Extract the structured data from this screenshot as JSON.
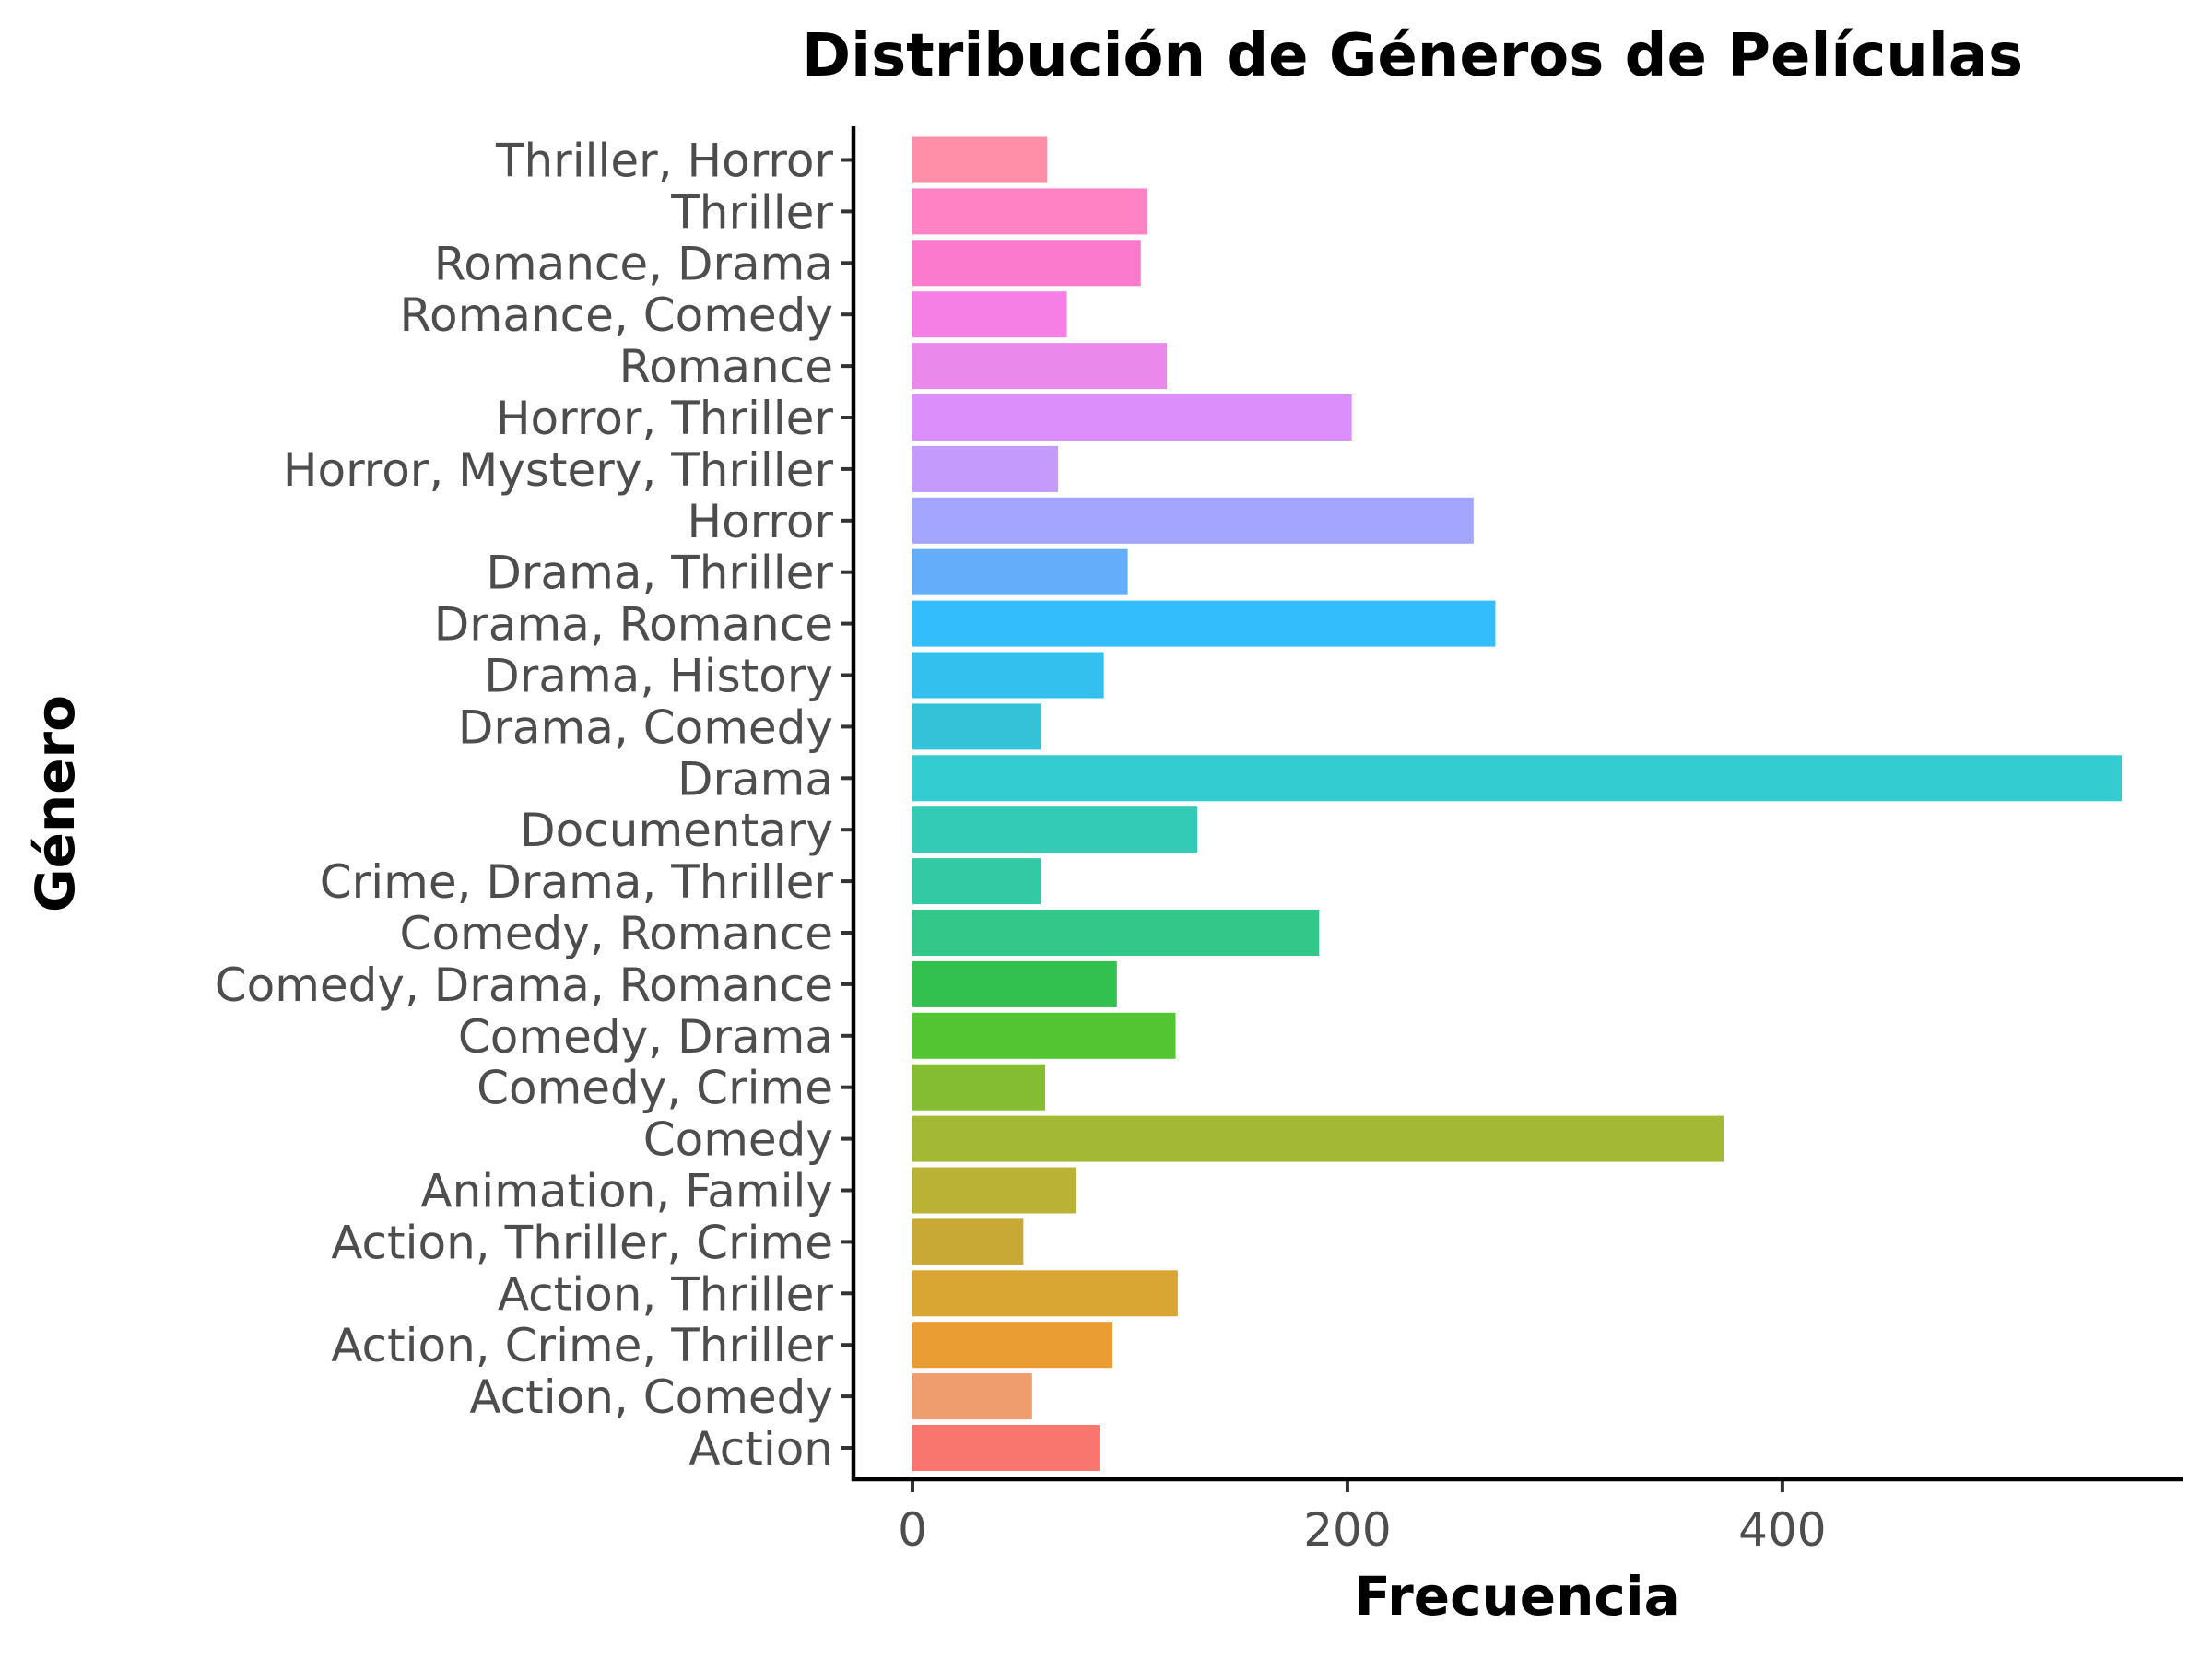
{
  "chart_data": {
    "type": "bar",
    "orientation": "horizontal",
    "title": "Distribución de Géneros de Películas",
    "xlabel": "Frecuencia",
    "ylabel": "Género",
    "xlim": [
      0,
      565
    ],
    "xticks": [
      0,
      200,
      400
    ],
    "xtick_labels": [
      "0",
      "200",
      "400"
    ],
    "grid": false,
    "legend": "none",
    "categories": [
      "Action",
      "Action, Comedy",
      "Action, Crime, Thriller",
      "Action, Thriller",
      "Action, Thriller, Crime",
      "Animation, Family",
      "Comedy",
      "Comedy, Crime",
      "Comedy, Drama",
      "Comedy, Drama, Romance",
      "Comedy, Romance",
      "Crime, Drama, Thriller",
      "Documentary",
      "Drama",
      "Drama, Comedy",
      "Drama, History",
      "Drama, Romance",
      "Drama, Thriller",
      "Horror",
      "Horror, Mystery, Thriller",
      "Horror, Thriller",
      "Romance",
      "Romance, Comedy",
      "Romance, Drama",
      "Thriller",
      "Thriller, Horror"
    ],
    "values": [
      86,
      55,
      92,
      122,
      51,
      75,
      373,
      61,
      121,
      94,
      187,
      59,
      131,
      556,
      59,
      88,
      268,
      99,
      258,
      67,
      202,
      117,
      71,
      105,
      108,
      62
    ],
    "colors": [
      "#F8766D",
      "#EF9C6E",
      "#E99D33",
      "#D9A633",
      "#C9A935",
      "#B9B235",
      "#A3B935",
      "#84BD32",
      "#53C432",
      "#32C04E",
      "#33C88A",
      "#33C9A4",
      "#33CBB5",
      "#33CCD0",
      "#33C2D8",
      "#33C0EE",
      "#33BDFC",
      "#64ADFB",
      "#A3A5FF",
      "#C49AFC",
      "#DC8EFA",
      "#EA88EC",
      "#F57FE4",
      "#FB7ACE",
      "#FE82C4",
      "#FF8EA8"
    ]
  }
}
